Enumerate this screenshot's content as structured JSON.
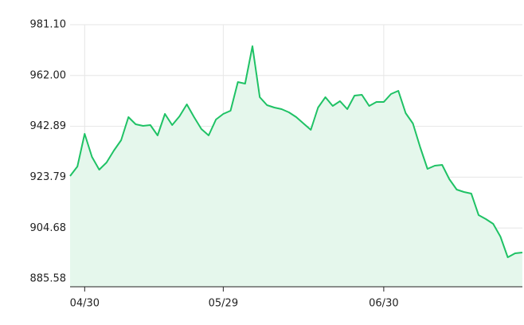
{
  "chart_data": {
    "type": "area",
    "categories": [
      null,
      null,
      "04/30",
      null,
      null,
      null,
      null,
      null,
      null,
      null,
      null,
      null,
      null,
      null,
      null,
      null,
      null,
      null,
      null,
      null,
      null,
      "05/29",
      null,
      null,
      null,
      null,
      null,
      null,
      null,
      null,
      null,
      null,
      null,
      null,
      null,
      null,
      null,
      null,
      null,
      null,
      null,
      null,
      null,
      "06/30",
      null,
      null,
      null,
      null,
      null,
      null,
      null,
      null,
      null,
      null,
      null,
      null,
      null,
      null,
      null,
      null,
      null,
      null,
      null
    ],
    "values": [
      924.21,
      927.81,
      940.08,
      931.4,
      926.61,
      929.3,
      933.79,
      937.69,
      946.37,
      943.67,
      943.08,
      943.38,
      939.48,
      947.57,
      943.38,
      946.67,
      951.16,
      946.37,
      941.88,
      939.48,
      945.47,
      947.57,
      948.76,
      959.54,
      958.94,
      973.02,
      953.85,
      950.86,
      949.96,
      949.36,
      948.17,
      946.37,
      943.97,
      941.58,
      949.96,
      953.85,
      950.56,
      952.36,
      949.36,
      954.45,
      954.75,
      950.56,
      952.06,
      952.06,
      955.05,
      956.25,
      947.87,
      943.97,
      934.99,
      926.91,
      928.11,
      928.41,
      923.02,
      919.12,
      918.23,
      917.63,
      909.54,
      908.05,
      906.25,
      901.46,
      893.67,
      895.17,
      895.47
    ],
    "color": "#1fc265",
    "fill": "#e5f7ec",
    "ylim": [
      882.6,
      981.1
    ],
    "yticks": [
      {
        "value": 885.58,
        "label": "885.58"
      },
      {
        "value": 904.68,
        "label": "904.68"
      },
      {
        "value": 923.79,
        "label": "923.79"
      },
      {
        "value": 942.89,
        "label": "942.89"
      },
      {
        "value": 962.0,
        "label": "962.00"
      },
      {
        "value": 981.1,
        "label": "981.10"
      }
    ],
    "grid": true
  }
}
